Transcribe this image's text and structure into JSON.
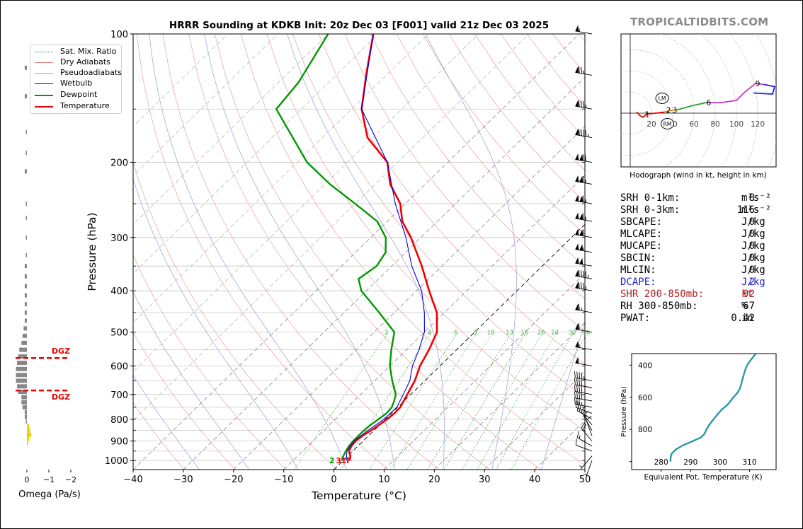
{
  "header": {
    "title": "HRRR Sounding at KDKB Init: 20z Dec 03 [F001] valid 21z Dec 03 2025",
    "site_credit": "TROPICALTIDBITS.COM"
  },
  "legend": [
    {
      "label": "Sat. Mix. Ratio",
      "color": "#2ca02c",
      "style": "dotted"
    },
    {
      "label": "Dry Adiabats",
      "color": "#e07a7a",
      "style": "solid-thin"
    },
    {
      "label": "Pseudoadiabats",
      "color": "#9a9ad8",
      "style": "solid-thin"
    },
    {
      "label": "Wetbulb",
      "color": "#0000ee",
      "style": "solid"
    },
    {
      "label": "Dewpoint",
      "color": "#009900",
      "style": "solid-thick"
    },
    {
      "label": "Temperature",
      "color": "#ee0000",
      "style": "solid-thick"
    }
  ],
  "chart_data": [
    {
      "type": "line",
      "name": "skew-t",
      "xlabel": "Temperature (°C)",
      "ylabel": "Pressure (hPa)",
      "xlim": [
        -40,
        50
      ],
      "ylim": [
        1050,
        100
      ],
      "y_scale": "log",
      "skew_degrees_per_log_decade": 87,
      "x_ticks": [
        -40,
        -30,
        -20,
        -10,
        0,
        10,
        20,
        30,
        40,
        50
      ],
      "x_tick_labels": [
        "−40",
        "−30",
        "−20",
        "−10",
        "0",
        "10",
        "20",
        "30",
        "40",
        "50"
      ],
      "y_ticks": [
        1000,
        900,
        800,
        700,
        600,
        500,
        400,
        300,
        200,
        100
      ],
      "y_tick_labels": [
        "1000",
        "900",
        "800",
        "700",
        "600",
        "500",
        "400",
        "300",
        "200",
        "100"
      ],
      "y_grid": [
        1000,
        950,
        900,
        850,
        800,
        750,
        700,
        650,
        600,
        550,
        500,
        450,
        400,
        350,
        300,
        250,
        200,
        150,
        100
      ],
      "mix_ratio_labels": [
        "2",
        "4",
        "6",
        "8",
        "10",
        "13",
        "16",
        "20",
        "24",
        "30",
        "36"
      ],
      "mix_ratio_values": [
        2,
        4,
        6,
        8,
        10,
        13,
        16,
        20,
        24,
        30,
        36
      ],
      "surface_label": "2",
      "surface_temp_label": "31F",
      "series": [
        {
          "name": "Temperature",
          "color": "#ee0000",
          "points": [
            [
              1000,
              1.3
            ],
            [
              975,
              0.5
            ],
            [
              950,
              -0.8
            ],
            [
              925,
              -1.3
            ],
            [
              900,
              -1.5
            ],
            [
              875,
              -1.2
            ],
            [
              850,
              -0.6
            ],
            [
              825,
              -0.1
            ],
            [
              800,
              0.3
            ],
            [
              775,
              0.6
            ],
            [
              750,
              0.5
            ],
            [
              725,
              -0.1
            ],
            [
              700,
              -0.7
            ],
            [
              650,
              -2
            ],
            [
              600,
              -4
            ],
            [
              550,
              -5.5
            ],
            [
              500,
              -7.5
            ],
            [
              450,
              -11.5
            ],
            [
              400,
              -17.5
            ],
            [
              350,
              -24
            ],
            [
              300,
              -32
            ],
            [
              275,
              -37
            ],
            [
              250,
              -41
            ],
            [
              225,
              -47
            ],
            [
              200,
              -52
            ],
            [
              175,
              -61
            ],
            [
              150,
              -68
            ],
            [
              125,
              -74
            ],
            [
              100,
              -81
            ]
          ]
        },
        {
          "name": "Dewpoint",
          "color": "#009900",
          "points": [
            [
              1000,
              -0.3
            ],
            [
              975,
              -0.9
            ],
            [
              950,
              -1.4
            ],
            [
              925,
              -1.8
            ],
            [
              900,
              -2
            ],
            [
              875,
              -2
            ],
            [
              850,
              -2
            ],
            [
              825,
              -1.8
            ],
            [
              800,
              -1.4
            ],
            [
              775,
              -1
            ],
            [
              750,
              -1.2
            ],
            [
              725,
              -2
            ],
            [
              700,
              -3
            ],
            [
              650,
              -6.5
            ],
            [
              600,
              -10
            ],
            [
              550,
              -13
            ],
            [
              500,
              -16
            ],
            [
              450,
              -23
            ],
            [
              400,
              -31
            ],
            [
              375,
              -34
            ],
            [
              350,
              -33
            ],
            [
              325,
              -34
            ],
            [
              300,
              -37
            ],
            [
              275,
              -42
            ],
            [
              250,
              -50
            ],
            [
              225,
              -59
            ],
            [
              200,
              -68
            ],
            [
              150,
              -85
            ],
            [
              130,
              -86
            ],
            [
              100,
              -90
            ]
          ]
        },
        {
          "name": "Wetbulb",
          "color": "#0000ee",
          "points": [
            [
              1000,
              0.6
            ],
            [
              950,
              -1.2
            ],
            [
              900,
              -1.8
            ],
            [
              850,
              -1.2
            ],
            [
              800,
              -0.3
            ],
            [
              750,
              -0.2
            ],
            [
              700,
              -1.5
            ],
            [
              650,
              -3
            ],
            [
              600,
              -5.5
            ],
            [
              550,
              -7.5
            ],
            [
              500,
              -10
            ],
            [
              450,
              -14
            ],
            [
              400,
              -19
            ],
            [
              350,
              -26
            ],
            [
              300,
              -33
            ],
            [
              250,
              -42
            ],
            [
              200,
              -52
            ],
            [
              150,
              -68
            ],
            [
              100,
              -81
            ]
          ]
        }
      ]
    },
    {
      "type": "line",
      "name": "hodograph",
      "caption": "Hodograph (wind in kt, height in km)",
      "x_tick_labels": [
        "20",
        "40",
        "60",
        "80",
        "100",
        "120"
      ],
      "x_ticks": [
        20,
        40,
        60,
        80,
        100,
        120
      ],
      "labels": [
        {
          "text": "1",
          "u": 16,
          "v": -1
        },
        {
          "text": "2",
          "u": 36,
          "v": 3
        },
        {
          "text": "3",
          "u": 42,
          "v": 3
        },
        {
          "text": "6",
          "u": 74,
          "v": 10
        },
        {
          "text": "9",
          "u": 120,
          "v": 28
        },
        {
          "text": "LM",
          "u": 30,
          "v": 14
        },
        {
          "text": "RM",
          "u": 35,
          "v": -10
        }
      ],
      "series": [
        {
          "name": "0-1 km",
          "color": "#ee0000",
          "points": [
            [
              6,
              1
            ],
            [
              9,
              -2
            ],
            [
              12,
              -4
            ],
            [
              15,
              -1
            ],
            [
              24,
              0
            ],
            [
              32,
              1
            ]
          ]
        },
        {
          "name": "1-3 km",
          "color": "#ff7f0e",
          "points": [
            [
              32,
              1
            ],
            [
              40,
              3
            ],
            [
              44,
              3
            ]
          ]
        },
        {
          "name": "3-6 km",
          "color": "#2ca02c",
          "points": [
            [
              44,
              3
            ],
            [
              58,
              7
            ],
            [
              72,
              10
            ]
          ]
        },
        {
          "name": "6-9 km",
          "color": "#cc33cc",
          "points": [
            [
              72,
              10
            ],
            [
              86,
              10
            ],
            [
              100,
              12
            ],
            [
              108,
              20
            ],
            [
              118,
              28
            ],
            [
              126,
              27
            ]
          ]
        },
        {
          "name": "9+ km",
          "color": "#2222ee",
          "points": [
            [
              126,
              27
            ],
            [
              136,
              25
            ],
            [
              134,
              18
            ],
            [
              116,
              19
            ]
          ]
        }
      ]
    },
    {
      "type": "line",
      "name": "theta-e",
      "xlabel": "Equivalent Pot. Temperature (K)",
      "ylabel": "Pressure (hPa)",
      "x_ticks": [
        280,
        290,
        300,
        310
      ],
      "x_tick_labels": [
        "280",
        "290",
        "300",
        "310"
      ],
      "y_ticks": [
        400,
        600,
        800
      ],
      "y_tick_labels": [
        "400",
        "600",
        "800"
      ],
      "color": "#2a97a8",
      "points": [
        [
          1000,
          283.2
        ],
        [
          975,
          283.2
        ],
        [
          950,
          283.6
        ],
        [
          925,
          285
        ],
        [
          900,
          287.3
        ],
        [
          875,
          290.5
        ],
        [
          850,
          293.5
        ],
        [
          825,
          294.8
        ],
        [
          800,
          295.4
        ],
        [
          775,
          296.2
        ],
        [
          750,
          297.2
        ],
        [
          725,
          298.3
        ],
        [
          700,
          299.4
        ],
        [
          675,
          300.7
        ],
        [
          650,
          302.3
        ],
        [
          625,
          303.5
        ],
        [
          600,
          304.5
        ],
        [
          575,
          305.8
        ],
        [
          550,
          306.6
        ],
        [
          525,
          307.1
        ],
        [
          500,
          307.4
        ],
        [
          475,
          307.8
        ],
        [
          450,
          308.2
        ],
        [
          425,
          308.6
        ],
        [
          400,
          309.2
        ],
        [
          375,
          310.1
        ],
        [
          350,
          311.2
        ],
        [
          325,
          312.3
        ],
        [
          300,
          314
        ]
      ]
    },
    {
      "type": "bar",
      "name": "omega",
      "xlabel": "Omega (Pa/s)",
      "x_ticks": [
        0,
        -1,
        -2
      ],
      "x_tick_labels": [
        "0",
        "−1",
        "−2"
      ],
      "dgz_label": "DGZ",
      "dgz_pressures": [
        575,
        685
      ],
      "levels": [
        [
          910,
          -0.05
        ],
        [
          890,
          -0.1
        ],
        [
          870,
          -0.2
        ],
        [
          850,
          -0.15
        ],
        [
          830,
          -0.1
        ],
        [
          810,
          0.05
        ],
        [
          790,
          0.1
        ],
        [
          770,
          0.1
        ],
        [
          750,
          0.2
        ],
        [
          730,
          0.25
        ],
        [
          710,
          0.25
        ],
        [
          690,
          0.4
        ],
        [
          670,
          0.45
        ],
        [
          650,
          0.5
        ],
        [
          630,
          0.5
        ],
        [
          610,
          0.5
        ],
        [
          590,
          0.45
        ],
        [
          570,
          0.4
        ],
        [
          550,
          0.35
        ],
        [
          530,
          0.25
        ],
        [
          510,
          0.2
        ],
        [
          490,
          0.15
        ],
        [
          470,
          0.1
        ],
        [
          450,
          0.1
        ],
        [
          430,
          0.1
        ],
        [
          410,
          0.1
        ],
        [
          390,
          0.1
        ],
        [
          370,
          0.1
        ],
        [
          350,
          0.1
        ],
        [
          330,
          0.05
        ],
        [
          300,
          0.05
        ],
        [
          270,
          0.05
        ],
        [
          250,
          0.05
        ],
        [
          210,
          0.1
        ],
        [
          190,
          0.05
        ],
        [
          170,
          0.05
        ],
        [
          140,
          0.1
        ],
        [
          120,
          0.1
        ]
      ]
    },
    {
      "type": "table",
      "name": "wind-barbs",
      "levels": [
        [
          1000,
          200,
          5
        ],
        [
          975,
          220,
          6
        ],
        [
          950,
          290,
          12
        ],
        [
          925,
          300,
          15
        ],
        [
          900,
          320,
          20
        ],
        [
          875,
          340,
          10
        ],
        [
          850,
          330,
          15
        ],
        [
          825,
          320,
          15
        ],
        [
          800,
          300,
          15
        ],
        [
          775,
          290,
          25
        ],
        [
          750,
          280,
          35
        ],
        [
          725,
          280,
          40
        ],
        [
          700,
          280,
          40
        ],
        [
          675,
          280,
          40
        ],
        [
          650,
          280,
          45
        ],
        [
          600,
          280,
          50
        ],
        [
          550,
          280,
          55
        ],
        [
          500,
          280,
          60
        ],
        [
          450,
          280,
          65
        ],
        [
          400,
          280,
          85
        ],
        [
          375,
          280,
          95
        ],
        [
          350,
          280,
          100
        ],
        [
          325,
          280,
          105
        ],
        [
          300,
          280,
          110
        ],
        [
          275,
          280,
          115
        ],
        [
          250,
          280,
          115
        ],
        [
          225,
          280,
          115
        ],
        [
          200,
          280,
          120
        ],
        [
          175,
          280,
          95
        ],
        [
          150,
          280,
          85
        ],
        [
          125,
          280,
          75
        ],
        [
          100,
          280,
          55
        ]
      ]
    }
  ],
  "stats": [
    {
      "label": "SRH 0-1km:",
      "value": "8",
      "unit": "m²s⁻²",
      "color": "#000000"
    },
    {
      "label": "SRH 0-3km:",
      "value": "116",
      "unit": "m²s⁻²",
      "color": "#000000"
    },
    {
      "label": "SBCAPE:",
      "value": "0",
      "unit": "J/kg",
      "color": "#000000"
    },
    {
      "label": "MLCAPE:",
      "value": "0",
      "unit": "J/kg",
      "color": "#000000"
    },
    {
      "label": "MUCAPE:",
      "value": "0",
      "unit": "J/kg",
      "color": "#000000"
    },
    {
      "label": "SBCIN:",
      "value": "0",
      "unit": "J/kg",
      "color": "#000000"
    },
    {
      "label": "MLCIN:",
      "value": "0",
      "unit": "J/kg",
      "color": "#000000"
    },
    {
      "label": "DCAPE:",
      "value": "2",
      "unit": "J/kg",
      "color": "#2222cc"
    },
    {
      "label": "SHR 200-850mb:",
      "value": "92",
      "unit": "kt",
      "color": "#b22222"
    },
    {
      "label": "RH 300-850mb:",
      "value": "67",
      "unit": "%",
      "color": "#000000"
    },
    {
      "label": "PWAT:",
      "value": "0.42",
      "unit": "in",
      "color": "#000000"
    }
  ]
}
